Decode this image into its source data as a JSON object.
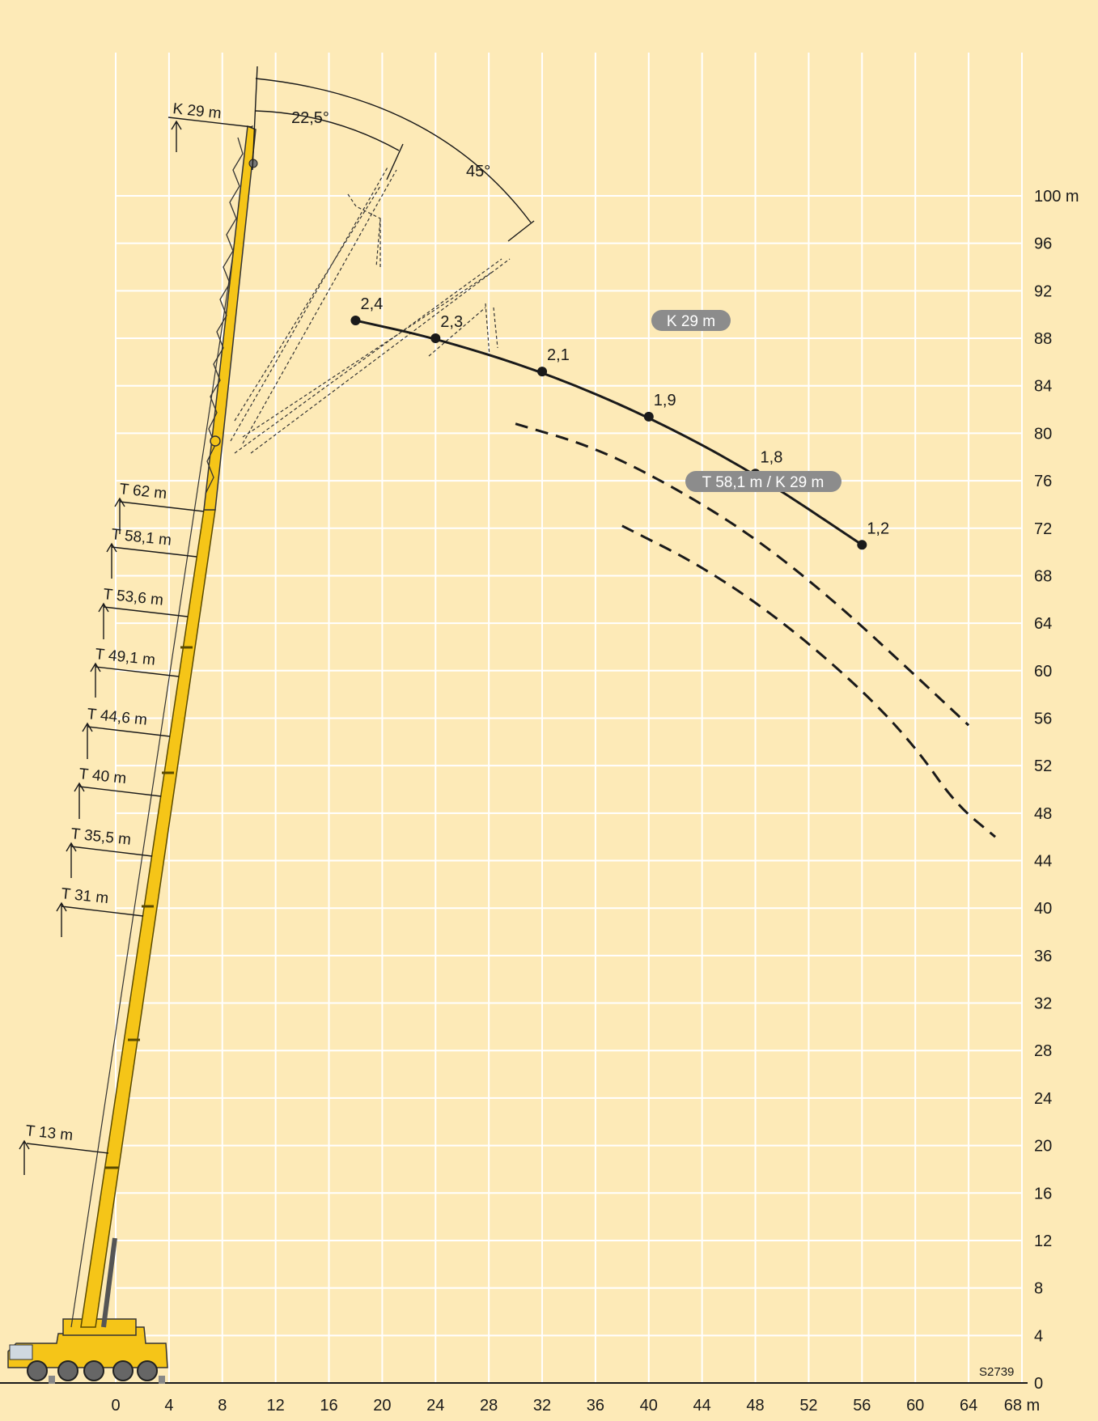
{
  "drawing_code": "S2739",
  "chart_data": {
    "type": "line",
    "x_unit": "m",
    "y_unit": "m",
    "xlim": [
      0,
      68
    ],
    "ylim": [
      0,
      100
    ],
    "x_ticks": [
      "0",
      "4",
      "8",
      "12",
      "16",
      "20",
      "24",
      "28",
      "32",
      "36",
      "40",
      "44",
      "48",
      "52",
      "56",
      "60",
      "64",
      "68 m"
    ],
    "y_ticks": [
      "0",
      "4",
      "8",
      "12",
      "16",
      "20",
      "24",
      "28",
      "32",
      "36",
      "40",
      "44",
      "48",
      "52",
      "56",
      "60",
      "64",
      "68",
      "72",
      "76",
      "80",
      "84",
      "88",
      "92",
      "96",
      "100 m"
    ],
    "grid": true,
    "series": [
      {
        "name": "K 29 m",
        "style": "solid",
        "points": [
          {
            "x": 18,
            "y": 89.5,
            "label": "2,4"
          },
          {
            "x": 24,
            "y": 88.0,
            "label": "2,3"
          },
          {
            "x": 32,
            "y": 85.2,
            "label": "2,1"
          },
          {
            "x": 40,
            "y": 81.4,
            "label": "1,9"
          },
          {
            "x": 48,
            "y": 76.6,
            "label": "1,8"
          },
          {
            "x": 56,
            "y": 70.6,
            "label": "1,2"
          }
        ]
      },
      {
        "name": "",
        "style": "dashed",
        "points": [
          {
            "x": 30,
            "y": 80.8
          },
          {
            "x": 36,
            "y": 78.8
          },
          {
            "x": 42,
            "y": 75.4
          },
          {
            "x": 48,
            "y": 71.2
          },
          {
            "x": 54,
            "y": 65.8
          },
          {
            "x": 60,
            "y": 59.6
          },
          {
            "x": 64,
            "y": 55.4
          }
        ]
      },
      {
        "name": "T 58,1 m / K 29 m",
        "style": "dashed",
        "points": [
          {
            "x": 38,
            "y": 72.2
          },
          {
            "x": 44,
            "y": 68.8
          },
          {
            "x": 50,
            "y": 64.2
          },
          {
            "x": 56,
            "y": 58.4
          },
          {
            "x": 60,
            "y": 53.6
          },
          {
            "x": 63,
            "y": 48.8
          },
          {
            "x": 66,
            "y": 46.0
          }
        ]
      }
    ],
    "angle_annotations": [
      "22,5°",
      "45°"
    ],
    "boom_lengths": [
      "K 29 m",
      "T 62 m",
      "T 58,1 m",
      "T 53,6 m",
      "T 49,1 m",
      "T 44,6 m",
      "T 40 m",
      "T 35,5 m",
      "T 31 m",
      "T 13 m"
    ],
    "colors": {
      "background": "#fdeab7",
      "grid": "#ffffff",
      "curve": "#1a1a1a",
      "pill": "#8c8c8c",
      "boom": "#f5c518",
      "boom_outline": "#5a4a00"
    }
  }
}
